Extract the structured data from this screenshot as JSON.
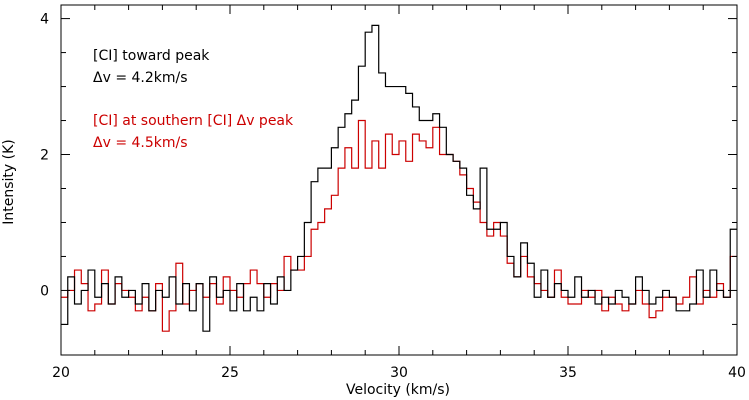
{
  "chart_data": {
    "type": "line",
    "step": true,
    "xlabel": "Velocity (km/s)",
    "ylabel": "Intensity (K)",
    "xlim": [
      20,
      40
    ],
    "ylim": [
      -0.95,
      4.2
    ],
    "x_ticks": [
      20,
      25,
      30,
      35,
      40
    ],
    "y_ticks": [
      0,
      2,
      4
    ],
    "grid": false,
    "legend_position": "top-left",
    "annotations": [
      {
        "lines": [
          "[CI] toward peak",
          "Δv = 4.2km/s"
        ],
        "color": "#000000"
      },
      {
        "lines": [
          "[CI] at southern [CI] Δv peak",
          "Δv = 4.5km/s"
        ],
        "color": "#cc0000"
      }
    ],
    "series": [
      {
        "color": "#000000",
        "points": [
          [
            20.0,
            -0.5
          ],
          [
            20.2,
            0.2
          ],
          [
            20.4,
            -0.2
          ],
          [
            20.6,
            0.0
          ],
          [
            20.8,
            0.3
          ],
          [
            21.0,
            -0.1
          ],
          [
            21.2,
            0.1
          ],
          [
            21.4,
            -0.2
          ],
          [
            21.6,
            0.2
          ],
          [
            21.8,
            -0.1
          ],
          [
            22.0,
            0.0
          ],
          [
            22.2,
            -0.2
          ],
          [
            22.4,
            0.1
          ],
          [
            22.6,
            -0.3
          ],
          [
            22.8,
            0.0
          ],
          [
            23.0,
            -0.1
          ],
          [
            23.2,
            0.2
          ],
          [
            23.4,
            -0.2
          ],
          [
            23.6,
            0.1
          ],
          [
            23.8,
            -0.3
          ],
          [
            24.0,
            0.1
          ],
          [
            24.2,
            -0.6
          ],
          [
            24.4,
            0.2
          ],
          [
            24.6,
            -0.1
          ],
          [
            24.8,
            0.0
          ],
          [
            25.0,
            -0.3
          ],
          [
            25.2,
            0.1
          ],
          [
            25.4,
            -0.3
          ],
          [
            25.6,
            -0.1
          ],
          [
            25.8,
            -0.3
          ],
          [
            26.0,
            0.1
          ],
          [
            26.2,
            -0.2
          ],
          [
            26.4,
            0.2
          ],
          [
            26.6,
            0.0
          ],
          [
            26.8,
            0.3
          ],
          [
            27.0,
            0.5
          ],
          [
            27.2,
            1.0
          ],
          [
            27.4,
            1.6
          ],
          [
            27.6,
            1.8
          ],
          [
            27.8,
            1.8
          ],
          [
            28.0,
            2.1
          ],
          [
            28.2,
            2.4
          ],
          [
            28.4,
            2.6
          ],
          [
            28.6,
            2.8
          ],
          [
            28.8,
            3.3
          ],
          [
            29.0,
            3.8
          ],
          [
            29.2,
            3.9
          ],
          [
            29.4,
            3.2
          ],
          [
            29.6,
            3.0
          ],
          [
            29.8,
            3.0
          ],
          [
            30.0,
            3.0
          ],
          [
            30.2,
            2.9
          ],
          [
            30.4,
            2.7
          ],
          [
            30.6,
            2.5
          ],
          [
            30.8,
            2.5
          ],
          [
            31.0,
            2.6
          ],
          [
            31.2,
            2.4
          ],
          [
            31.4,
            2.0
          ],
          [
            31.6,
            1.9
          ],
          [
            31.8,
            1.8
          ],
          [
            32.0,
            1.4
          ],
          [
            32.2,
            1.2
          ],
          [
            32.4,
            1.8
          ],
          [
            32.6,
            0.9
          ],
          [
            32.8,
            0.9
          ],
          [
            33.0,
            1.0
          ],
          [
            33.2,
            0.5
          ],
          [
            33.4,
            0.2
          ],
          [
            33.6,
            0.7
          ],
          [
            33.8,
            0.4
          ],
          [
            34.0,
            -0.1
          ],
          [
            34.2,
            0.3
          ],
          [
            34.4,
            -0.1
          ],
          [
            34.6,
            0.1
          ],
          [
            34.8,
            0.0
          ],
          [
            35.0,
            -0.1
          ],
          [
            35.2,
            0.2
          ],
          [
            35.4,
            -0.1
          ],
          [
            35.6,
            0.0
          ],
          [
            35.8,
            -0.2
          ],
          [
            36.0,
            -0.1
          ],
          [
            36.2,
            -0.2
          ],
          [
            36.4,
            0.0
          ],
          [
            36.6,
            -0.1
          ],
          [
            36.8,
            -0.2
          ],
          [
            37.0,
            0.2
          ],
          [
            37.2,
            0.0
          ],
          [
            37.4,
            -0.2
          ],
          [
            37.6,
            -0.1
          ],
          [
            37.8,
            0.0
          ],
          [
            38.0,
            -0.1
          ],
          [
            38.2,
            -0.3
          ],
          [
            38.4,
            -0.3
          ],
          [
            38.6,
            -0.2
          ],
          [
            38.8,
            0.3
          ],
          [
            39.0,
            -0.1
          ],
          [
            39.2,
            0.3
          ],
          [
            39.4,
            0.0
          ],
          [
            39.6,
            -0.1
          ],
          [
            39.8,
            0.9
          ]
        ]
      },
      {
        "color": "#cc0000",
        "points": [
          [
            20.0,
            -0.1
          ],
          [
            20.2,
            0.0
          ],
          [
            20.4,
            0.3
          ],
          [
            20.6,
            0.1
          ],
          [
            20.8,
            -0.3
          ],
          [
            21.0,
            -0.2
          ],
          [
            21.2,
            0.3
          ],
          [
            21.4,
            -0.2
          ],
          [
            21.6,
            0.1
          ],
          [
            21.8,
            0.0
          ],
          [
            22.0,
            -0.1
          ],
          [
            22.2,
            -0.3
          ],
          [
            22.4,
            -0.1
          ],
          [
            22.6,
            -0.3
          ],
          [
            22.8,
            0.1
          ],
          [
            23.0,
            -0.6
          ],
          [
            23.2,
            -0.3
          ],
          [
            23.4,
            0.4
          ],
          [
            23.6,
            -0.2
          ],
          [
            23.8,
            0.0
          ],
          [
            24.0,
            0.1
          ],
          [
            24.2,
            -0.1
          ],
          [
            24.4,
            0.1
          ],
          [
            24.6,
            -0.2
          ],
          [
            24.8,
            0.2
          ],
          [
            25.0,
            0.0
          ],
          [
            25.2,
            -0.1
          ],
          [
            25.4,
            0.1
          ],
          [
            25.6,
            0.3
          ],
          [
            25.8,
            0.1
          ],
          [
            26.0,
            -0.1
          ],
          [
            26.2,
            0.1
          ],
          [
            26.4,
            0.0
          ],
          [
            26.6,
            0.5
          ],
          [
            26.8,
            0.3
          ],
          [
            27.0,
            0.3
          ],
          [
            27.2,
            0.5
          ],
          [
            27.4,
            0.9
          ],
          [
            27.6,
            1.0
          ],
          [
            27.8,
            1.2
          ],
          [
            28.0,
            1.4
          ],
          [
            28.2,
            1.8
          ],
          [
            28.4,
            2.1
          ],
          [
            28.6,
            1.8
          ],
          [
            28.8,
            2.5
          ],
          [
            29.0,
            1.8
          ],
          [
            29.2,
            2.2
          ],
          [
            29.4,
            1.8
          ],
          [
            29.6,
            2.3
          ],
          [
            29.8,
            2.0
          ],
          [
            30.0,
            2.2
          ],
          [
            30.2,
            1.9
          ],
          [
            30.4,
            2.3
          ],
          [
            30.6,
            2.2
          ],
          [
            30.8,
            2.1
          ],
          [
            31.0,
            2.4
          ],
          [
            31.2,
            2.0
          ],
          [
            31.4,
            2.0
          ],
          [
            31.6,
            1.9
          ],
          [
            31.8,
            1.7
          ],
          [
            32.0,
            1.5
          ],
          [
            32.2,
            1.3
          ],
          [
            32.4,
            1.0
          ],
          [
            32.6,
            0.8
          ],
          [
            32.8,
            1.0
          ],
          [
            33.0,
            0.8
          ],
          [
            33.2,
            0.4
          ],
          [
            33.4,
            0.2
          ],
          [
            33.6,
            0.5
          ],
          [
            33.8,
            0.2
          ],
          [
            34.0,
            0.1
          ],
          [
            34.2,
            0.0
          ],
          [
            34.4,
            -0.1
          ],
          [
            34.6,
            0.3
          ],
          [
            34.8,
            -0.1
          ],
          [
            35.0,
            -0.2
          ],
          [
            35.2,
            -0.2
          ],
          [
            35.4,
            0.0
          ],
          [
            35.6,
            -0.1
          ],
          [
            35.8,
            0.0
          ],
          [
            36.0,
            -0.3
          ],
          [
            36.2,
            -0.1
          ],
          [
            36.4,
            -0.2
          ],
          [
            36.6,
            -0.3
          ],
          [
            36.8,
            -0.2
          ],
          [
            37.0,
            0.0
          ],
          [
            37.2,
            -0.2
          ],
          [
            37.4,
            -0.4
          ],
          [
            37.6,
            -0.3
          ],
          [
            37.8,
            -0.1
          ],
          [
            38.0,
            -0.1
          ],
          [
            38.2,
            -0.2
          ],
          [
            38.4,
            -0.1
          ],
          [
            38.6,
            0.2
          ],
          [
            38.8,
            -0.2
          ],
          [
            39.0,
            0.0
          ],
          [
            39.2,
            -0.1
          ],
          [
            39.4,
            0.1
          ],
          [
            39.6,
            -0.1
          ],
          [
            39.8,
            0.5
          ]
        ]
      }
    ]
  }
}
